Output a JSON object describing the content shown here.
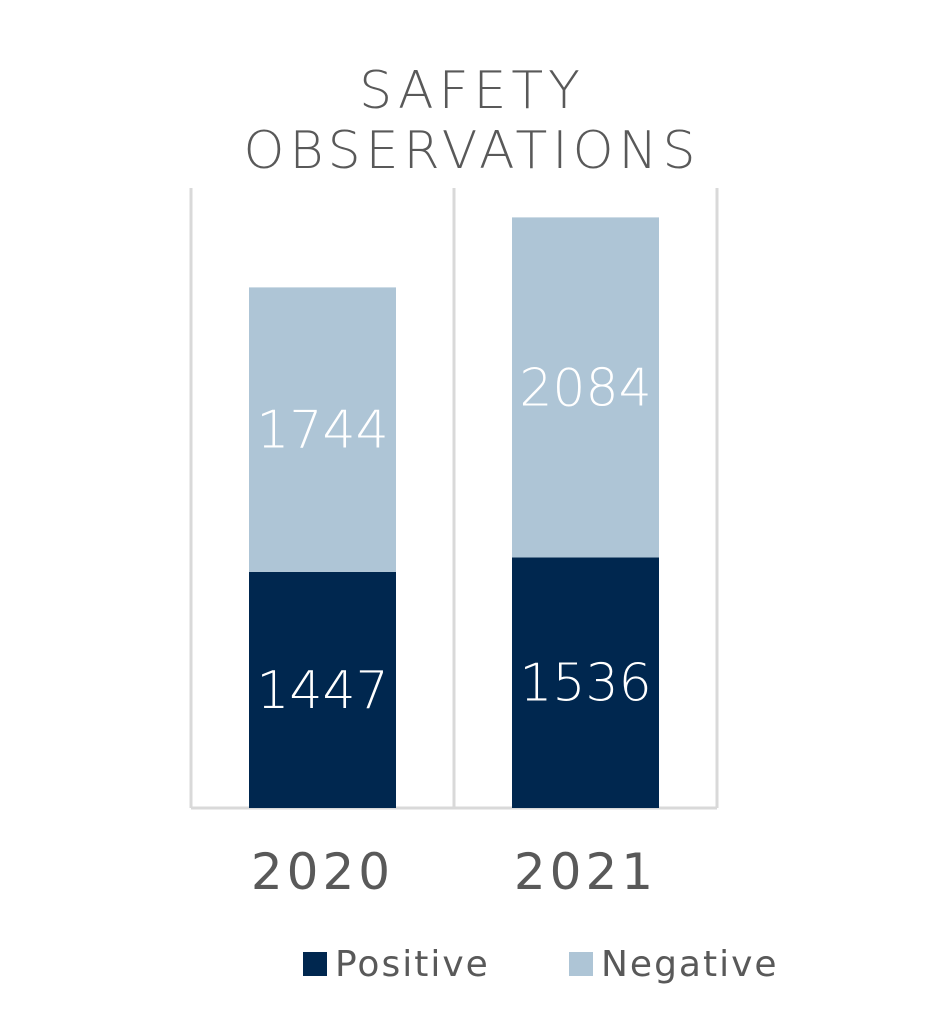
{
  "chart_data": {
    "type": "bar",
    "stacked": true,
    "title": [
      "SAFETY",
      "OBSERVATIONS"
    ],
    "categories": [
      "2020",
      "2021"
    ],
    "series": [
      {
        "name": "Positive",
        "values": [
          1447,
          1536
        ],
        "color": "#00274f"
      },
      {
        "name": "Negative",
        "values": [
          1744,
          2084
        ],
        "color": "#aec5d6"
      }
    ],
    "ylim": [
      0,
      3800
    ],
    "grid": false,
    "legend": "bottom"
  }
}
